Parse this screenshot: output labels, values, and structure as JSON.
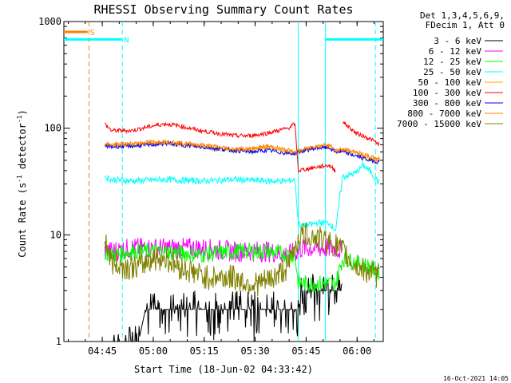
{
  "chart_data": {
    "type": "line",
    "title": "RHESSI Observing Summary Count Rates",
    "xlabel": "Start Time (18-Jun-02 04:33:42)",
    "ylabel_parts": [
      "Count Rate (s",
      "-1",
      " detector",
      "-1",
      ")"
    ],
    "yscale": "log",
    "ylim": [
      1,
      1000
    ],
    "xlim_minutes": [
      0,
      94
    ],
    "x_ticks": [
      {
        "label": "04:45",
        "min": 11.3
      },
      {
        "label": "05:00",
        "min": 26.3
      },
      {
        "label": "05:15",
        "min": 41.3
      },
      {
        "label": "05:30",
        "min": 56.3
      },
      {
        "label": "05:45",
        "min": 71.3
      },
      {
        "label": "06:00",
        "min": 86.3
      }
    ],
    "y_ticks": [
      {
        "label": "1",
        "value": 1
      },
      {
        "label": "10",
        "value": 10
      },
      {
        "label": "100",
        "value": 100
      },
      {
        "label": "1000",
        "value": 1000
      }
    ],
    "legend_header": [
      "Det 1,3,4,5,6,9,",
      "FDecim 1, Att 0"
    ],
    "legend_position": "outside-right",
    "series": [
      {
        "name": "3 - 6 keV",
        "color": "#000000",
        "x": [
          0,
          12,
          14,
          22,
          24,
          60,
          66,
          69,
          70,
          75,
          79,
          82,
          94
        ],
        "y": [
          null,
          null,
          1,
          1,
          2,
          2,
          2,
          2,
          3,
          3,
          3,
          3,
          null
        ]
      },
      {
        "name": "6 - 12 keV",
        "color": "#ff00ff",
        "x": [
          0,
          10,
          12,
          14,
          20,
          30,
          40,
          50,
          60,
          66,
          69,
          70,
          75,
          80,
          82,
          94
        ],
        "y": [
          null,
          null,
          7,
          7,
          7.5,
          7.5,
          7.5,
          7,
          7,
          6.5,
          7,
          7.5,
          7.5,
          7.5,
          7,
          null
        ]
      },
      {
        "name": "12 - 25 keV",
        "color": "#00ff00",
        "x": [
          10,
          12,
          14,
          20,
          30,
          40,
          50,
          60,
          66,
          68,
          69,
          70,
          72,
          76,
          80,
          82,
          86,
          90,
          93
        ],
        "y": [
          null,
          7,
          6.5,
          7,
          7,
          6.5,
          7,
          7,
          6.5,
          6.5,
          3.5,
          3.5,
          3.5,
          3.5,
          3.5,
          6,
          5.5,
          5,
          4.5
        ]
      },
      {
        "name": "25 - 50 keV",
        "color": "#00ffff",
        "x": [
          10,
          12,
          14,
          20,
          30,
          40,
          50,
          60,
          66,
          68,
          69,
          70,
          75,
          78,
          80,
          82,
          86,
          88,
          90,
          93
        ],
        "y": [
          null,
          35,
          33,
          32,
          33,
          32,
          33,
          32,
          32,
          33,
          13,
          12,
          13,
          13,
          11,
          35,
          38,
          45,
          40,
          30
        ]
      },
      {
        "name": "50 - 100 keV",
        "color": "#ffa500",
        "x": [
          10,
          12,
          14,
          20,
          26,
          30,
          40,
          50,
          55,
          60,
          66,
          68,
          69,
          74,
          78,
          80,
          82,
          86,
          90,
          93
        ],
        "y": [
          null,
          70,
          68,
          70,
          72,
          73,
          68,
          62,
          63,
          67,
          60,
          58,
          60,
          66,
          68,
          60,
          62,
          58,
          52,
          50
        ]
      },
      {
        "name": "100 - 300 keV",
        "color": "#ff0000",
        "x": [
          10,
          12,
          14,
          20,
          26,
          30,
          34,
          40,
          50,
          55,
          60,
          66,
          68,
          69,
          74,
          78,
          80,
          81,
          82,
          86,
          90,
          93
        ],
        "y": [
          null,
          110,
          95,
          95,
          105,
          110,
          105,
          95,
          85,
          85,
          90,
          100,
          110,
          40,
          43,
          45,
          40,
          null,
          115,
          90,
          80,
          70
        ]
      },
      {
        "name": "300 - 800 keV",
        "color": "#0000ff",
        "x": [
          10,
          12,
          14,
          20,
          26,
          30,
          40,
          50,
          55,
          60,
          66,
          68,
          69,
          74,
          78,
          80,
          82,
          86,
          90,
          93
        ],
        "y": [
          null,
          68,
          67,
          68,
          70,
          72,
          67,
          62,
          60,
          62,
          58,
          58,
          60,
          65,
          66,
          60,
          60,
          55,
          50,
          48
        ]
      },
      {
        "name": "800 - 7000 keV",
        "color": "#ff8000",
        "x": [
          10,
          12,
          14,
          20,
          26,
          30,
          40,
          50,
          55,
          60,
          66,
          68,
          69,
          74,
          78,
          80,
          82,
          86,
          90,
          93
        ],
        "y": [
          null,
          72,
          70,
          72,
          74,
          75,
          70,
          64,
          64,
          68,
          62,
          60,
          61,
          68,
          70,
          62,
          63,
          60,
          54,
          52
        ]
      },
      {
        "name": "7000 - 15000 keV",
        "color": "#808000",
        "x": [
          10,
          12,
          14,
          18,
          22,
          26,
          30,
          34,
          38,
          42,
          46,
          50,
          54,
          58,
          62,
          66,
          68,
          70,
          72,
          74,
          76,
          78,
          80,
          82,
          86,
          90,
          93
        ],
        "y": [
          null,
          10,
          5.5,
          5,
          5,
          6,
          6,
          5,
          4.5,
          4,
          4,
          4,
          3.5,
          3.5,
          4,
          5,
          8,
          10,
          10,
          9.5,
          9,
          8.5,
          8,
          7,
          5,
          4.5,
          4
        ]
      }
    ],
    "annotations": [
      {
        "label": "S",
        "color": "#ff8000",
        "bar_from_min": 0,
        "bar_to_min": 7,
        "value": 800
      },
      {
        "label": "N",
        "color": "#00ffff",
        "bar_from_min": 0,
        "bar_to_min": 17,
        "value": 680
      },
      {
        "label": "",
        "color": "#00ffff",
        "bar_from_min": 77,
        "bar_to_min": 94,
        "value": 680
      }
    ],
    "vertical_markers": [
      {
        "min": 7.4,
        "color": "#ff8000",
        "style": "dashed"
      },
      {
        "min": 17.2,
        "color": "#00ffff",
        "style": "dashed"
      },
      {
        "min": 91.7,
        "color": "#00ffff",
        "style": "dashed"
      },
      {
        "min": 77,
        "color": "#00ffff",
        "style": "solid"
      },
      {
        "min": 69,
        "color": "#00ffff",
        "style": "solid"
      }
    ]
  },
  "footer_timestamp": "16-Oct-2021 14:05"
}
